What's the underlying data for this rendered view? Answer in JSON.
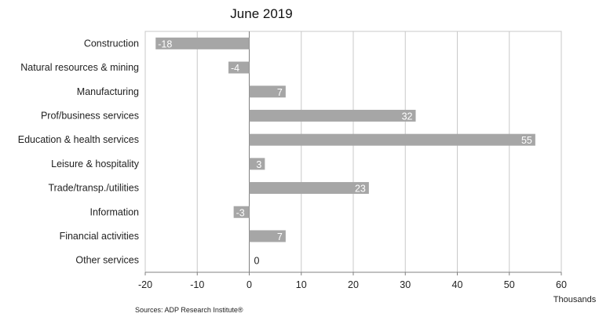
{
  "chart_data": {
    "type": "bar",
    "orientation": "horizontal",
    "title": "June 2019",
    "categories": [
      "Construction",
      "Natural resources & mining",
      "Manufacturing",
      "Prof/business services",
      "Education & health services",
      "Leisure & hospitality",
      "Trade/transp./utilities",
      "Information",
      "Financial activities",
      "Other services"
    ],
    "values": [
      -18,
      -4,
      7,
      32,
      55,
      3,
      23,
      -3,
      7,
      0
    ],
    "value_labels": [
      "-18",
      "-4",
      "7",
      "32",
      "55",
      "3",
      "23",
      "-3",
      "7",
      "0"
    ],
    "xlim": [
      -20,
      60
    ],
    "xticks": [
      -20,
      -10,
      0,
      10,
      20,
      30,
      40,
      50,
      60
    ],
    "xlabel": "Thousands",
    "ylabel": "",
    "grid": true,
    "legend": "none",
    "colors": {
      "bar": "#a6a6a6",
      "bar_label": "#ffffff",
      "outside_label": "#222222",
      "grid": "#c8c8c8",
      "axis": "#808080"
    },
    "source": "Sources: ADP Research Institute®"
  }
}
